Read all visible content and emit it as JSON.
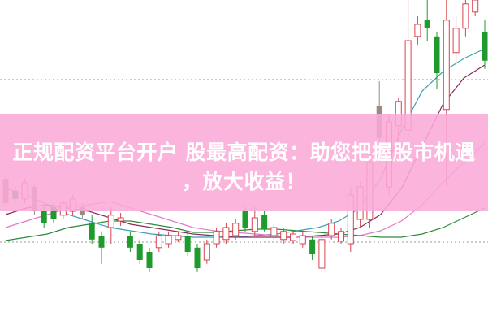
{
  "banner": {
    "line1": "正规配资平台开户 股最高配资：助您把握股市机遇",
    "line2": "，放大收益！"
  },
  "colors": {
    "up": "#d8434c",
    "down": "#1f9a2c",
    "neutral": "#9a8a84",
    "banner": "#f8b0d8",
    "ma_short": "#3aa0b8",
    "ma_mid": "#8a2a5a",
    "ma_long": "#e27ac8",
    "ma_extra": "#2e8a3a"
  },
  "chart_data": {
    "type": "candlestick",
    "title": "",
    "xlabel": "",
    "ylabel": "",
    "ylim": [
      0,
      100
    ],
    "grid": "two dotted horizontal lines",
    "candles": [
      {
        "o": 45.0,
        "c": 37.5,
        "h": 46.3,
        "l": 36.3,
        "d": "neutral"
      },
      {
        "o": 41.3,
        "c": 38.8,
        "h": 42.5,
        "l": 37.5,
        "d": "down"
      },
      {
        "o": 38.8,
        "c": 43.8,
        "h": 45.0,
        "l": 37.5,
        "d": "up"
      },
      {
        "o": 42.5,
        "c": 35.0,
        "h": 43.8,
        "l": 33.8,
        "d": "neutral"
      },
      {
        "o": 35.0,
        "c": 31.3,
        "h": 36.3,
        "l": 30.0,
        "d": "down"
      },
      {
        "o": 36.3,
        "c": 32.5,
        "h": 37.5,
        "l": 31.3,
        "d": "down"
      },
      {
        "o": 33.8,
        "c": 37.5,
        "h": 38.8,
        "l": 32.5,
        "d": "up"
      },
      {
        "o": 35.0,
        "c": 38.8,
        "h": 40.0,
        "l": 33.8,
        "d": "up"
      },
      {
        "o": 36.3,
        "c": 33.8,
        "h": 37.5,
        "l": 32.5,
        "d": "neutral"
      },
      {
        "o": 31.3,
        "c": 26.3,
        "h": 33.8,
        "l": 25.0,
        "d": "down"
      },
      {
        "o": 27.5,
        "c": 23.8,
        "h": 28.8,
        "l": 18.8,
        "d": "down"
      },
      {
        "o": 30.0,
        "c": 33.8,
        "h": 36.3,
        "l": 25.0,
        "d": "up"
      },
      {
        "o": 32.0,
        "c": 33.0,
        "h": 34.5,
        "l": 30.5,
        "d": "up"
      },
      {
        "o": 27.5,
        "c": 23.8,
        "h": 28.8,
        "l": 22.5,
        "d": "down"
      },
      {
        "o": 25.0,
        "c": 20.0,
        "h": 26.3,
        "l": 18.8,
        "d": "down"
      },
      {
        "o": 22.5,
        "c": 17.5,
        "h": 23.8,
        "l": 16.3,
        "d": "down"
      },
      {
        "o": 23.8,
        "c": 27.5,
        "h": 28.8,
        "l": 22.5,
        "d": "up"
      },
      {
        "o": 25.0,
        "c": 27.5,
        "h": 28.8,
        "l": 23.8,
        "d": "up"
      },
      {
        "o": 26.3,
        "c": 27.5,
        "h": 28.5,
        "l": 25.5,
        "d": "up"
      },
      {
        "o": 27.5,
        "c": 22.5,
        "h": 28.8,
        "l": 21.3,
        "d": "down"
      },
      {
        "o": 23.8,
        "c": 17.5,
        "h": 25.0,
        "l": 16.3,
        "d": "down"
      },
      {
        "o": 20.0,
        "c": 25.0,
        "h": 26.3,
        "l": 18.8,
        "d": "up"
      },
      {
        "o": 25.0,
        "c": 28.8,
        "h": 30.0,
        "l": 23.8,
        "d": "up"
      },
      {
        "o": 26.3,
        "c": 30.0,
        "h": 31.3,
        "l": 25.0,
        "d": "up"
      },
      {
        "o": 27.5,
        "c": 31.3,
        "h": 32.5,
        "l": 26.3,
        "d": "up"
      },
      {
        "o": 35.0,
        "c": 30.0,
        "h": 36.3,
        "l": 28.8,
        "d": "down"
      },
      {
        "o": 28.8,
        "c": 33.0,
        "h": 36.3,
        "l": 27.5,
        "d": "up"
      },
      {
        "o": 33.8,
        "c": 29.5,
        "h": 35.0,
        "l": 28.8,
        "d": "down"
      },
      {
        "o": 27.5,
        "c": 30.0,
        "h": 31.3,
        "l": 26.3,
        "d": "up"
      },
      {
        "o": 26.3,
        "c": 28.8,
        "h": 30.0,
        "l": 25.0,
        "d": "up"
      },
      {
        "o": 26.0,
        "c": 28.0,
        "h": 29.0,
        "l": 25.0,
        "d": "up"
      },
      {
        "o": 25.0,
        "c": 27.5,
        "h": 28.8,
        "l": 23.8,
        "d": "up"
      },
      {
        "o": 26.3,
        "c": 22.0,
        "h": 27.5,
        "l": 20.0,
        "d": "down"
      },
      {
        "o": 17.5,
        "c": 26.3,
        "h": 27.5,
        "l": 16.3,
        "d": "up"
      },
      {
        "o": 27.5,
        "c": 31.3,
        "h": 32.5,
        "l": 26.3,
        "d": "up"
      },
      {
        "o": 25.8,
        "c": 28.8,
        "h": 30.0,
        "l": 25.0,
        "d": "up"
      },
      {
        "o": 25.0,
        "c": 40.0,
        "h": 42.5,
        "l": 22.5,
        "d": "up"
      },
      {
        "o": 32.5,
        "c": 42.5,
        "h": 43.8,
        "l": 30.0,
        "d": "up"
      },
      {
        "o": 32.5,
        "c": 50.0,
        "h": 52.5,
        "l": 30.0,
        "d": "up"
      },
      {
        "o": 67.5,
        "c": 57.5,
        "h": 75.0,
        "l": 50.0,
        "d": "neutral"
      },
      {
        "o": 42.5,
        "c": 62.5,
        "h": 65.0,
        "l": 40.0,
        "d": "up"
      },
      {
        "o": 61.3,
        "c": 68.8,
        "h": 70.0,
        "l": 55.0,
        "d": "up"
      },
      {
        "o": 60.0,
        "c": 87.5,
        "h": 100.0,
        "l": 57.5,
        "d": "up"
      },
      {
        "o": 88.8,
        "c": 92.5,
        "h": 95.0,
        "l": 86.3,
        "d": "up"
      },
      {
        "o": 93.8,
        "c": 91.3,
        "h": 100.0,
        "l": 87.5,
        "d": "down"
      },
      {
        "o": 88.8,
        "c": 77.5,
        "h": 90.0,
        "l": 72.5,
        "d": "down"
      },
      {
        "o": 66.3,
        "c": 93.8,
        "h": 100.0,
        "l": 42.5,
        "d": "up"
      },
      {
        "o": 83.8,
        "c": 91.3,
        "h": 95.0,
        "l": 80.0,
        "d": "up"
      },
      {
        "o": 91.3,
        "c": 98.8,
        "h": 100.0,
        "l": 88.8,
        "d": "up"
      },
      {
        "o": 96.3,
        "c": 100.0,
        "h": 100.0,
        "l": 95.0,
        "d": "up"
      },
      {
        "o": 90.0,
        "c": 81.3,
        "h": 93.8,
        "l": 78.8,
        "d": "down"
      }
    ],
    "moving_averages": [
      {
        "color_key": "ma_short",
        "values": [
          42,
          40,
          37,
          34,
          32,
          30,
          29,
          28,
          27.5,
          27,
          27,
          27,
          27.5,
          28,
          29,
          30,
          32,
          36,
          45,
          60,
          72,
          78,
          82,
          85
        ]
      },
      {
        "color_key": "ma_mid",
        "values": [
          34,
          36,
          37,
          36,
          35,
          33,
          31,
          30,
          29,
          28,
          27.5,
          27,
          27,
          27,
          27,
          27.5,
          28,
          30,
          34,
          42,
          55,
          68,
          76,
          80
        ]
      },
      {
        "color_key": "ma_long",
        "values": [
          30,
          32,
          34,
          36,
          37,
          38,
          36,
          34,
          32,
          30,
          29,
          28.5,
          28,
          27.5,
          27,
          27,
          27,
          27.5,
          29,
          32,
          37,
          44,
          50,
          56
        ]
      },
      {
        "color_key": "ma_extra",
        "values": [
          26,
          27,
          28,
          30,
          31,
          32,
          32,
          31,
          30,
          28.5,
          28.5,
          29,
          29.5,
          29.5,
          29,
          28.5,
          28,
          27.5,
          27,
          27,
          28,
          30,
          33,
          36
        ]
      }
    ]
  }
}
